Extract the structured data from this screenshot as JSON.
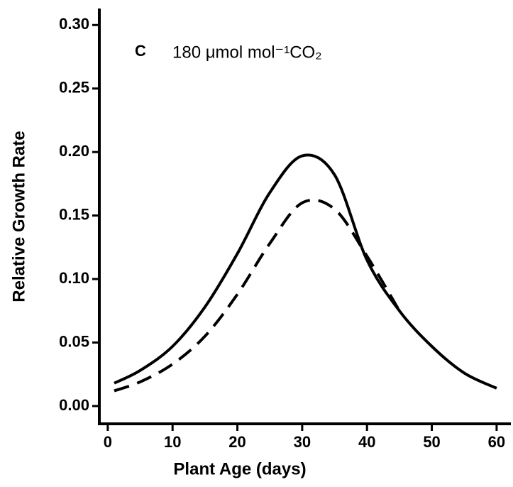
{
  "chart_data": {
    "type": "line",
    "annotation": {
      "label": "C",
      "text": "180 μmol mol⁻¹CO₂"
    },
    "xlabel": "Plant Age (days)",
    "ylabel": "Relative Growth Rate",
    "series": [
      {
        "color": "#000000",
        "style": "solid",
        "x": [
          1,
          5,
          10,
          15,
          20,
          25,
          30,
          35,
          40,
          45,
          50,
          55,
          60
        ],
        "values": [
          0.018,
          0.028,
          0.047,
          0.078,
          0.12,
          0.168,
          0.197,
          0.182,
          0.115,
          0.075,
          0.047,
          0.026,
          0.014
        ]
      },
      {
        "color": "#000000",
        "style": "dashed",
        "x": [
          1,
          5,
          10,
          15,
          20,
          25,
          30,
          35,
          40,
          45
        ],
        "values": [
          0.012,
          0.019,
          0.033,
          0.055,
          0.088,
          0.128,
          0.16,
          0.155,
          0.118,
          0.075
        ]
      }
    ],
    "xlim": [
      -1.3,
      62.2
    ],
    "ylim": [
      -0.014,
      0.313
    ],
    "xticks": [
      0,
      10,
      20,
      30,
      40,
      50,
      60
    ],
    "yticks": [
      {
        "value": 0,
        "label": "0.00"
      },
      {
        "value": 0.05,
        "label": "0.05"
      },
      {
        "value": 0.1,
        "label": "0.10"
      },
      {
        "value": 0.15,
        "label": "0.15"
      },
      {
        "value": 0.2,
        "label": "0.20"
      },
      {
        "value": 0.25,
        "label": "0.25"
      },
      {
        "value": 0.3,
        "label": "0.30"
      }
    ]
  }
}
